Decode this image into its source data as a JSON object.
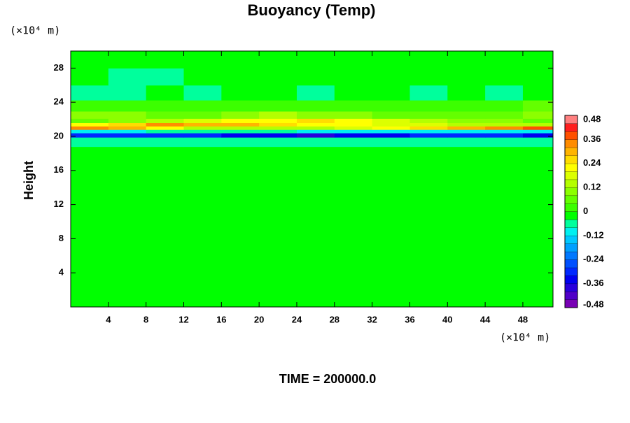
{
  "chart_data": {
    "type": "heatmap",
    "title": "Buoyancy (Temp)",
    "ylabel": "Height",
    "x_unit": "(×10⁴ m)",
    "y_unit": "(×10⁴ m)",
    "footer": "TIME = 200000.0",
    "xlim": [
      0,
      51.2
    ],
    "ylim": [
      0,
      30
    ],
    "xticks": [
      4,
      8,
      12,
      16,
      20,
      24,
      28,
      32,
      36,
      40,
      44,
      48
    ],
    "yticks": [
      4,
      8,
      12,
      16,
      20,
      24,
      28
    ],
    "x": [
      2,
      6,
      10,
      14,
      18,
      22,
      26,
      30,
      34,
      38,
      42,
      46,
      50
    ],
    "y": [
      2,
      6,
      10,
      14,
      18,
      19.6,
      20.2,
      20.6,
      21.0,
      21.4,
      21.8,
      22.4,
      23.5,
      25,
      27,
      29
    ],
    "z": [
      [
        -0.01,
        -0.01,
        -0.01,
        -0.01,
        -0.01,
        -0.01,
        -0.01,
        -0.01,
        -0.01,
        -0.01,
        -0.01,
        -0.01,
        -0.01
      ],
      [
        -0.01,
        -0.01,
        -0.01,
        -0.01,
        -0.01,
        -0.01,
        -0.01,
        -0.01,
        -0.01,
        -0.01,
        -0.01,
        -0.01,
        -0.01
      ],
      [
        -0.01,
        -0.01,
        -0.01,
        -0.01,
        -0.01,
        -0.01,
        -0.01,
        -0.01,
        -0.01,
        -0.01,
        -0.01,
        -0.01,
        -0.01
      ],
      [
        -0.01,
        -0.01,
        -0.01,
        -0.01,
        -0.01,
        -0.01,
        -0.01,
        -0.01,
        -0.01,
        -0.01,
        -0.01,
        -0.01,
        -0.01
      ],
      [
        -0.01,
        -0.01,
        -0.01,
        -0.01,
        -0.01,
        -0.01,
        -0.01,
        -0.01,
        -0.01,
        -0.01,
        -0.01,
        -0.01,
        -0.01
      ],
      [
        -0.06,
        -0.05,
        -0.06,
        -0.05,
        -0.06,
        -0.06,
        -0.05,
        -0.06,
        -0.06,
        -0.05,
        -0.06,
        -0.06,
        -0.05
      ],
      [
        -0.3,
        -0.32,
        -0.3,
        -0.3,
        -0.33,
        -0.34,
        -0.37,
        -0.36,
        -0.34,
        -0.32,
        -0.3,
        -0.31,
        -0.33
      ],
      [
        -0.1,
        -0.09,
        -0.08,
        -0.06,
        -0.06,
        -0.08,
        -0.1,
        -0.1,
        -0.09,
        -0.1,
        -0.1,
        -0.1,
        -0.1
      ],
      [
        0.34,
        0.3,
        0.2,
        0.15,
        0.12,
        0.12,
        0.14,
        0.16,
        0.2,
        0.26,
        0.3,
        0.35,
        0.37
      ],
      [
        0.2,
        0.26,
        0.33,
        0.3,
        0.28,
        0.26,
        0.22,
        0.2,
        0.18,
        0.16,
        0.14,
        0.12,
        0.12
      ],
      [
        0.08,
        0.1,
        0.12,
        0.16,
        0.2,
        0.22,
        0.24,
        0.22,
        0.16,
        0.12,
        0.1,
        0.09,
        0.08
      ],
      [
        0.1,
        0.09,
        0.07,
        0.08,
        0.1,
        0.12,
        0.1,
        0.09,
        0.07,
        0.06,
        0.06,
        0.07,
        0.09
      ],
      [
        0.02,
        0.03,
        0.03,
        0.02,
        0.02,
        0.03,
        0.02,
        0.02,
        0.03,
        0.02,
        0.02,
        0.03,
        0.05
      ],
      [
        -0.05,
        -0.05,
        -0.02,
        -0.05,
        -0.02,
        -0.02,
        -0.05,
        -0.02,
        -0.02,
        -0.05,
        -0.02,
        -0.05,
        -0.02
      ],
      [
        -0.01,
        -0.05,
        -0.05,
        -0.01,
        -0.01,
        -0.01,
        -0.01,
        -0.01,
        -0.01,
        -0.01,
        -0.01,
        -0.01,
        -0.01
      ],
      [
        -0.01,
        -0.01,
        -0.01,
        -0.01,
        -0.01,
        -0.01,
        -0.01,
        -0.01,
        -0.01,
        -0.01,
        -0.01,
        -0.01,
        -0.01
      ]
    ],
    "colorbar": {
      "lim": [
        -0.48,
        0.48
      ],
      "ticks": [
        -0.48,
        -0.36,
        -0.24,
        -0.12,
        0,
        0.12,
        0.24,
        0.36,
        0.48
      ],
      "colors": [
        "#7800b4",
        "#5000c8",
        "#2800dc",
        "#0000f0",
        "#0028ff",
        "#0050ff",
        "#0078ff",
        "#00a0ff",
        "#00c8ff",
        "#00f0f0",
        "#00ff9c",
        "#00ff00",
        "#3cff00",
        "#64ff00",
        "#8cff00",
        "#b4ff00",
        "#dcff00",
        "#ffff00",
        "#ffdc00",
        "#ffb400",
        "#ff8c00",
        "#ff5000",
        "#ff1e1e",
        "#ff8080"
      ]
    }
  }
}
